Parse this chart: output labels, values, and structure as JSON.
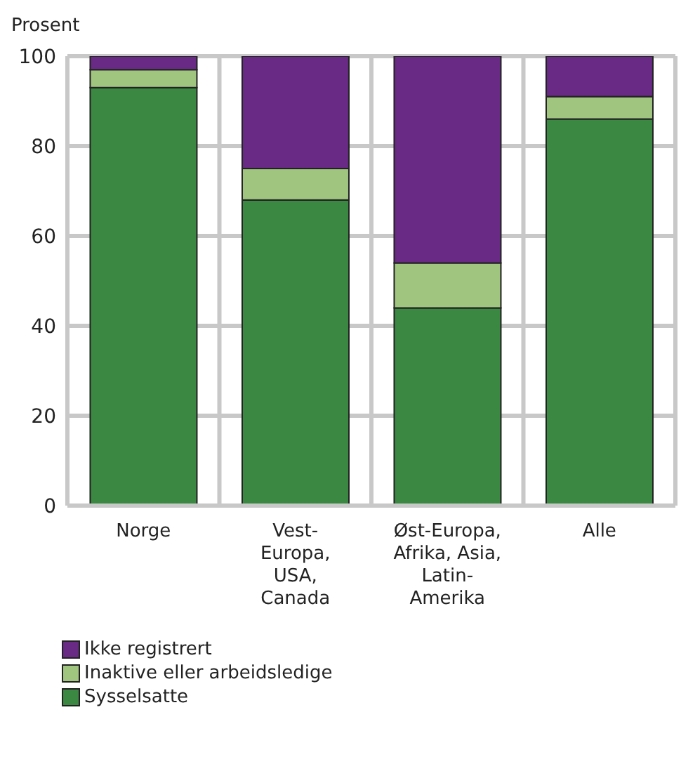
{
  "chart_data": {
    "type": "bar",
    "stacked": true,
    "ylabel": "Prosent",
    "categories": [
      "Norge",
      "Vest-\nEuropa,\nUSA,\nCanada",
      "Øst-Europa,\nAfrika, Asia,\nLatin-\nAmerika",
      "Alle"
    ],
    "series": [
      {
        "name": "Sysselsatte",
        "color": "#3a8841",
        "values": [
          93,
          68,
          44,
          86
        ]
      },
      {
        "name": "Inaktive eller arbeidsledige",
        "color": "#a0c57f",
        "values": [
          4,
          7,
          10,
          5
        ]
      },
      {
        "name": "Ikke registrert",
        "color": "#682a84",
        "values": [
          3,
          25,
          46,
          9
        ]
      }
    ],
    "ylim": [
      0,
      100
    ],
    "yticks": [
      0,
      20,
      40,
      60,
      80,
      100
    ],
    "grid": true,
    "legend": "bottom"
  }
}
